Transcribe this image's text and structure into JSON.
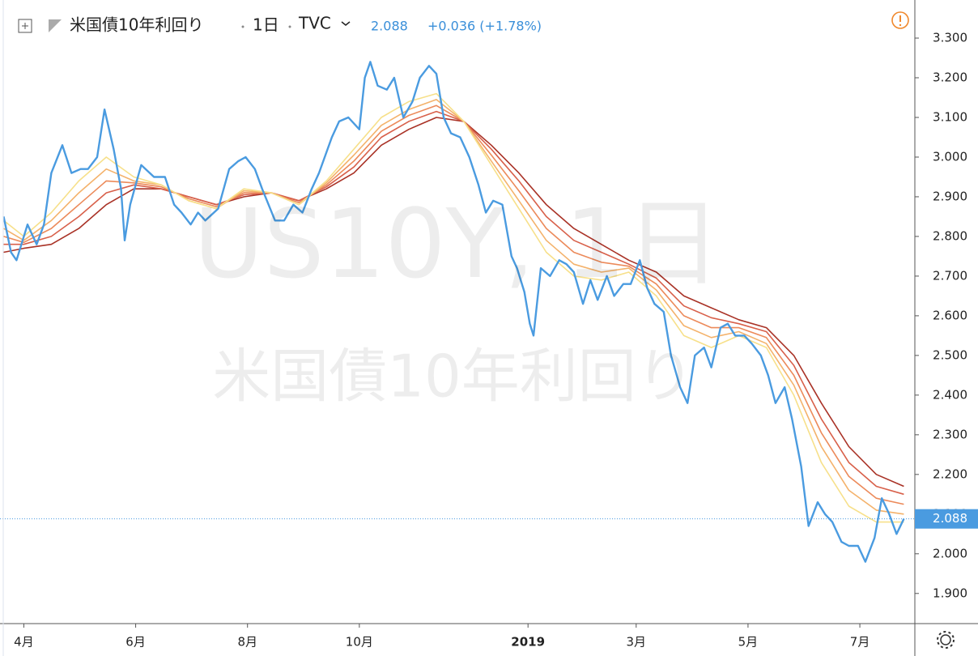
{
  "chart_data": {
    "type": "line",
    "title": "米国債10年利回り",
    "interval": "1日",
    "source": "TVC",
    "last": 2.088,
    "change": "+0.036 (+1.78%)",
    "watermark": "US10Y, 1日",
    "xlim": [
      -13,
      486
    ],
    "xticks": [
      {
        "value": 0,
        "label": "4月"
      },
      {
        "value": 61,
        "label": "6月"
      },
      {
        "value": 122,
        "label": "8月"
      },
      {
        "value": 183,
        "label": "10月"
      },
      {
        "value": 275,
        "label": "2019"
      },
      {
        "value": 334,
        "label": "3月"
      },
      {
        "value": 395,
        "label": "5月"
      },
      {
        "value": 456,
        "label": "7月"
      }
    ],
    "ylim": [
      1.824,
      3.396
    ],
    "yticks": [
      {
        "value": 3.3,
        "label": "3.300"
      },
      {
        "value": 3.2,
        "label": "3.200"
      },
      {
        "value": 3.1,
        "label": "3.100"
      },
      {
        "value": 3.0,
        "label": "3.000"
      },
      {
        "value": 2.9,
        "label": "2.900"
      },
      {
        "value": 2.8,
        "label": "2.800"
      },
      {
        "value": 2.7,
        "label": "2.700"
      },
      {
        "value": 2.6,
        "label": "2.600"
      },
      {
        "value": 2.5,
        "label": "2.500"
      },
      {
        "value": 2.4,
        "label": "2.400"
      },
      {
        "value": 2.3,
        "label": "2.300"
      },
      {
        "value": 2.2,
        "label": "2.200"
      },
      {
        "value": 2.1,
        "label": "2.100"
      },
      {
        "value": 2.0,
        "label": "2.000"
      },
      {
        "value": 1.9,
        "label": "1.900"
      }
    ],
    "series": [
      {
        "color": "#a93226",
        "x": [
          -11,
          0,
          15,
          30,
          45,
          60,
          75,
          90,
          105,
          120,
          135,
          150,
          165,
          180,
          195,
          210,
          225,
          240,
          255,
          270,
          285,
          300,
          315,
          330,
          345,
          360,
          375,
          390,
          405,
          420,
          435,
          450,
          465,
          480
        ],
        "values": [
          2.76,
          2.77,
          2.78,
          2.82,
          2.88,
          2.92,
          2.92,
          2.9,
          2.88,
          2.9,
          2.91,
          2.89,
          2.92,
          2.96,
          3.03,
          3.07,
          3.1,
          3.09,
          3.03,
          2.96,
          2.88,
          2.82,
          2.78,
          2.74,
          2.71,
          2.65,
          2.62,
          2.59,
          2.57,
          2.5,
          2.38,
          2.27,
          2.2,
          2.17
        ]
      },
      {
        "color": "#d8604a",
        "x": [
          -11,
          0,
          15,
          30,
          45,
          60,
          75,
          90,
          105,
          120,
          135,
          150,
          165,
          180,
          195,
          210,
          225,
          240,
          255,
          270,
          285,
          300,
          315,
          330,
          345,
          360,
          375,
          390,
          405,
          420,
          435,
          450,
          465,
          480
        ],
        "values": [
          2.78,
          2.78,
          2.8,
          2.85,
          2.91,
          2.93,
          2.92,
          2.9,
          2.88,
          2.905,
          2.91,
          2.89,
          2.925,
          2.975,
          3.05,
          3.09,
          3.115,
          3.09,
          3.02,
          2.94,
          2.85,
          2.79,
          2.76,
          2.73,
          2.695,
          2.625,
          2.595,
          2.58,
          2.56,
          2.475,
          2.34,
          2.23,
          2.17,
          2.15
        ]
      },
      {
        "color": "#ec8a5a",
        "x": [
          -11,
          0,
          15,
          30,
          45,
          60,
          75,
          90,
          105,
          120,
          135,
          150,
          165,
          180,
          195,
          210,
          225,
          240,
          255,
          270,
          285,
          300,
          315,
          330,
          345,
          360,
          375,
          390,
          405,
          420,
          435,
          450,
          465,
          480
        ],
        "values": [
          2.8,
          2.785,
          2.82,
          2.88,
          2.94,
          2.935,
          2.925,
          2.895,
          2.875,
          2.91,
          2.91,
          2.885,
          2.93,
          2.99,
          3.065,
          3.105,
          3.13,
          3.09,
          3.005,
          2.915,
          2.82,
          2.76,
          2.735,
          2.725,
          2.68,
          2.6,
          2.57,
          2.57,
          2.545,
          2.45,
          2.305,
          2.195,
          2.14,
          2.125
        ]
      },
      {
        "color": "#f4b26b",
        "x": [
          -11,
          0,
          15,
          30,
          45,
          60,
          75,
          90,
          105,
          120,
          135,
          150,
          165,
          180,
          195,
          210,
          225,
          240,
          255,
          270,
          285,
          300,
          315,
          330,
          345,
          360,
          375,
          390,
          405,
          420,
          435,
          450,
          465,
          480
        ],
        "values": [
          2.82,
          2.79,
          2.84,
          2.91,
          2.97,
          2.94,
          2.93,
          2.89,
          2.87,
          2.915,
          2.91,
          2.88,
          2.935,
          3.005,
          3.08,
          3.12,
          3.145,
          3.09,
          2.99,
          2.89,
          2.79,
          2.73,
          2.71,
          2.72,
          2.665,
          2.575,
          2.545,
          2.56,
          2.53,
          2.425,
          2.27,
          2.16,
          2.11,
          2.1
        ]
      },
      {
        "color": "#f7e08a",
        "x": [
          -11,
          0,
          15,
          30,
          45,
          60,
          75,
          90,
          105,
          120,
          135,
          150,
          165,
          180,
          195,
          210,
          225,
          240,
          255,
          270,
          285,
          300,
          315,
          330,
          345,
          360,
          375,
          390,
          405,
          420,
          435,
          450,
          465,
          480
        ],
        "values": [
          2.84,
          2.8,
          2.86,
          2.94,
          3.0,
          2.95,
          2.93,
          2.89,
          2.87,
          2.92,
          2.91,
          2.88,
          2.94,
          3.02,
          3.1,
          3.14,
          3.16,
          3.09,
          2.98,
          2.87,
          2.76,
          2.7,
          2.69,
          2.71,
          2.65,
          2.55,
          2.52,
          2.55,
          2.52,
          2.4,
          2.23,
          2.12,
          2.08,
          2.08
        ]
      },
      {
        "color": "#4a9be0",
        "x": [
          -11,
          -7,
          -4,
          2,
          7,
          11,
          15,
          21,
          26,
          31,
          35,
          40,
          44,
          49,
          53,
          55,
          58,
          64,
          71,
          77,
          82,
          86,
          91,
          95,
          99,
          106,
          112,
          117,
          121,
          126,
          130,
          137,
          142,
          147,
          152,
          157,
          161,
          168,
          172,
          177,
          183,
          186,
          189,
          193,
          198,
          202,
          207,
          212,
          216,
          221,
          225,
          229,
          233,
          238,
          243,
          248,
          252,
          256,
          261,
          266,
          269,
          273,
          276,
          278,
          282,
          287,
          292,
          296,
          300,
          305,
          309,
          313,
          318,
          322,
          327,
          331,
          336,
          340,
          344,
          349,
          353,
          358,
          362,
          366,
          371,
          375,
          380,
          384,
          388,
          393,
          397,
          402,
          406,
          410,
          415,
          419,
          424,
          428,
          433,
          437,
          441,
          446,
          450,
          455,
          459,
          464,
          468,
          472,
          476,
          480
        ],
        "values": [
          2.85,
          2.76,
          2.74,
          2.83,
          2.78,
          2.83,
          2.96,
          3.03,
          2.96,
          2.97,
          2.97,
          3.0,
          3.12,
          3.02,
          2.92,
          2.79,
          2.88,
          2.98,
          2.95,
          2.95,
          2.88,
          2.86,
          2.83,
          2.86,
          2.84,
          2.87,
          2.97,
          2.99,
          3.0,
          2.97,
          2.92,
          2.84,
          2.84,
          2.88,
          2.86,
          2.92,
          2.96,
          3.05,
          3.09,
          3.1,
          3.07,
          3.2,
          3.24,
          3.18,
          3.17,
          3.2,
          3.1,
          3.14,
          3.2,
          3.23,
          3.21,
          3.1,
          3.06,
          3.05,
          3.0,
          2.93,
          2.86,
          2.89,
          2.88,
          2.75,
          2.72,
          2.66,
          2.58,
          2.55,
          2.72,
          2.7,
          2.74,
          2.73,
          2.71,
          2.63,
          2.69,
          2.64,
          2.7,
          2.65,
          2.68,
          2.68,
          2.74,
          2.67,
          2.63,
          2.61,
          2.5,
          2.42,
          2.38,
          2.5,
          2.52,
          2.47,
          2.57,
          2.58,
          2.55,
          2.55,
          2.53,
          2.5,
          2.45,
          2.38,
          2.42,
          2.34,
          2.22,
          2.07,
          2.13,
          2.1,
          2.08,
          2.03,
          2.02,
          2.02,
          1.98,
          2.04,
          2.14,
          2.1,
          2.05,
          2.088
        ]
      }
    ]
  }
}
